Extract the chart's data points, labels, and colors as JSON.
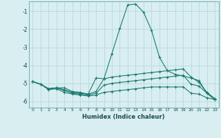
{
  "xlabel": "Humidex (Indice chaleur)",
  "bg_color": "#d8eef0",
  "grid_color": "#b8d8dc",
  "line_color": "#1a7a6e",
  "xlim": [
    -0.5,
    23.5
  ],
  "ylim": [
    -6.35,
    -0.45
  ],
  "yticks": [
    -1,
    -2,
    -3,
    -4,
    -5,
    -6
  ],
  "xticks": [
    0,
    1,
    2,
    3,
    4,
    5,
    6,
    7,
    8,
    9,
    10,
    11,
    12,
    13,
    14,
    15,
    16,
    17,
    18,
    19,
    20,
    21,
    22,
    23
  ],
  "series": [
    {
      "x": [
        0,
        1,
        2,
        3,
        4,
        5,
        6,
        7,
        8,
        9,
        10,
        11,
        12,
        13,
        14,
        15,
        16,
        17,
        18,
        19,
        20,
        21,
        22,
        23
      ],
      "y": [
        -4.9,
        -5.05,
        -5.3,
        -5.25,
        -5.25,
        -5.45,
        -5.5,
        -5.6,
        -4.7,
        -4.75,
        -3.35,
        -1.95,
        -0.65,
        -0.6,
        -1.05,
        -2.05,
        -3.55,
        -4.3,
        -4.5,
        -4.6,
        -4.7,
        -4.85,
        -5.55,
        -5.9
      ]
    },
    {
      "x": [
        0,
        1,
        2,
        3,
        4,
        5,
        6,
        7,
        8,
        9,
        10,
        11,
        12,
        13,
        14,
        15,
        16,
        17,
        18,
        19,
        20,
        21,
        22,
        23
      ],
      "y": [
        -4.9,
        -5.05,
        -5.3,
        -5.25,
        -5.35,
        -5.5,
        -5.55,
        -5.6,
        -5.45,
        -4.75,
        -4.65,
        -4.6,
        -4.55,
        -4.5,
        -4.45,
        -4.4,
        -4.35,
        -4.3,
        -4.25,
        -4.2,
        -4.65,
        -4.95,
        -5.5,
        -5.85
      ]
    },
    {
      "x": [
        0,
        1,
        2,
        3,
        4,
        5,
        6,
        7,
        8,
        9,
        10,
        11,
        12,
        13,
        14,
        15,
        16,
        17,
        18,
        19,
        20,
        21,
        22,
        23
      ],
      "y": [
        -4.9,
        -5.05,
        -5.3,
        -5.25,
        -5.4,
        -5.55,
        -5.6,
        -5.65,
        -5.55,
        -5.1,
        -5.0,
        -4.95,
        -4.9,
        -4.85,
        -4.8,
        -4.75,
        -4.7,
        -4.65,
        -4.6,
        -4.55,
        -5.05,
        -5.15,
        -5.55,
        -5.9
      ]
    },
    {
      "x": [
        0,
        1,
        2,
        3,
        4,
        5,
        6,
        7,
        8,
        9,
        10,
        11,
        12,
        13,
        14,
        15,
        16,
        17,
        18,
        19,
        20,
        21,
        22,
        23
      ],
      "y": [
        -4.9,
        -5.05,
        -5.35,
        -5.3,
        -5.5,
        -5.6,
        -5.65,
        -5.7,
        -5.65,
        -5.5,
        -5.45,
        -5.4,
        -5.35,
        -5.3,
        -5.25,
        -5.2,
        -5.2,
        -5.2,
        -5.2,
        -5.2,
        -5.55,
        -5.6,
        -5.8,
        -5.9
      ]
    }
  ]
}
